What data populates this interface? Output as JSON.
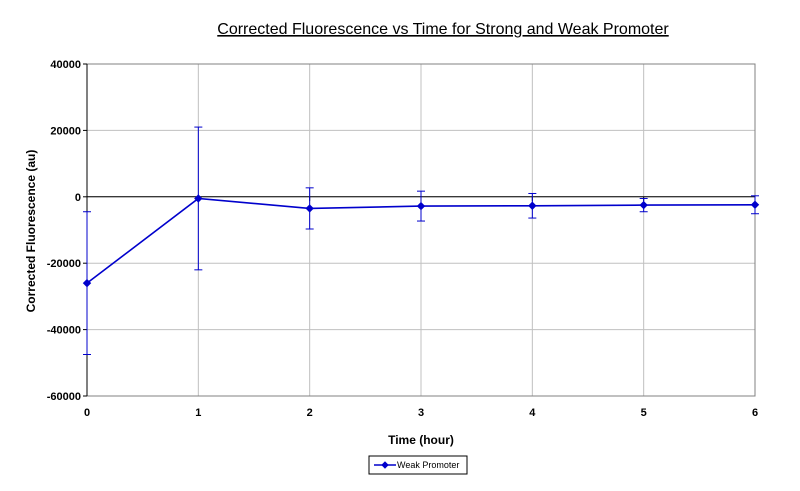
{
  "chart_data": {
    "type": "line",
    "title": "Corrected Fluorescence vs Time for Strong and Weak Promoter",
    "xlabel": "Time (hour)",
    "ylabel": "Corrected Fluorescence (au)",
    "xlim": [
      0,
      6
    ],
    "ylim": [
      -60000,
      40000
    ],
    "x_ticks": [
      0,
      1,
      2,
      3,
      4,
      5,
      6
    ],
    "y_ticks": [
      -60000,
      -40000,
      -20000,
      0,
      20000,
      40000
    ],
    "grid": true,
    "legend_position": "bottom-center",
    "x": [
      0,
      1,
      2,
      3,
      4,
      5,
      6
    ],
    "series": [
      {
        "name": "Weak Promoter",
        "color": "#0000cc",
        "marker": "diamond",
        "values": [
          -26000,
          -500,
          -3500,
          -2800,
          -2700,
          -2500,
          -2400
        ],
        "error": [
          21500,
          21500,
          6200,
          4500,
          3700,
          2000,
          2700
        ]
      }
    ]
  }
}
